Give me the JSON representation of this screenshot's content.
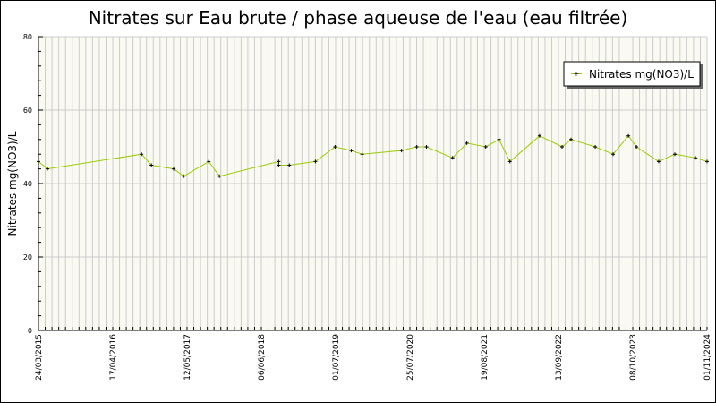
{
  "chart_data": {
    "type": "line",
    "title": "Nitrates sur Eau brute / phase aqueuse de l'eau (eau filtrée)",
    "xlabel": "",
    "ylabel": "Nitrates mg(NO3)/L",
    "ylim": [
      0,
      80
    ],
    "yticks": [
      "0",
      "20",
      "40",
      "60",
      "80"
    ],
    "xlim": [
      "2015-03-24",
      "2024-11-01"
    ],
    "xticks": [
      "24/03/2015",
      "17/04/2016",
      "12/05/2017",
      "06/06/2018",
      "01/07/2019",
      "25/07/2020",
      "19/08/2021",
      "13/09/2022",
      "08/10/2023",
      "01/11/2024"
    ],
    "grid": true,
    "legend_position": "top-right",
    "series": [
      {
        "name": "Nitrates mg(NO3)/L",
        "color": "#99cc00",
        "marker_color": "#000000",
        "points": [
          [
            "2015-03-24",
            46
          ],
          [
            "2015-05-10",
            44
          ],
          [
            "2016-09-15",
            48
          ],
          [
            "2016-11-06",
            45
          ],
          [
            "2017-03-03",
            44
          ],
          [
            "2017-04-24",
            42
          ],
          [
            "2017-09-03",
            46
          ],
          [
            "2017-10-29",
            42
          ],
          [
            "2018-09-05",
            46
          ],
          [
            "2018-09-05",
            45
          ],
          [
            "2018-10-31",
            45
          ],
          [
            "2019-03-17",
            46
          ],
          [
            "2019-06-28",
            50
          ],
          [
            "2019-09-21",
            49
          ],
          [
            "2019-11-17",
            48
          ],
          [
            "2020-06-11",
            49
          ],
          [
            "2020-08-30",
            50
          ],
          [
            "2020-10-20",
            50
          ],
          [
            "2021-03-06",
            47
          ],
          [
            "2021-05-20",
            51
          ],
          [
            "2021-08-27",
            50
          ],
          [
            "2021-11-05",
            52
          ],
          [
            "2022-01-01",
            46
          ],
          [
            "2022-06-06",
            53
          ],
          [
            "2022-10-02",
            50
          ],
          [
            "2022-11-18",
            52
          ],
          [
            "2023-03-25",
            50
          ],
          [
            "2023-06-27",
            48
          ],
          [
            "2023-09-15",
            53
          ],
          [
            "2023-10-27",
            50
          ],
          [
            "2024-02-21",
            46
          ],
          [
            "2024-05-16",
            48
          ],
          [
            "2024-09-01",
            47
          ],
          [
            "2024-11-01",
            46
          ]
        ]
      }
    ]
  }
}
